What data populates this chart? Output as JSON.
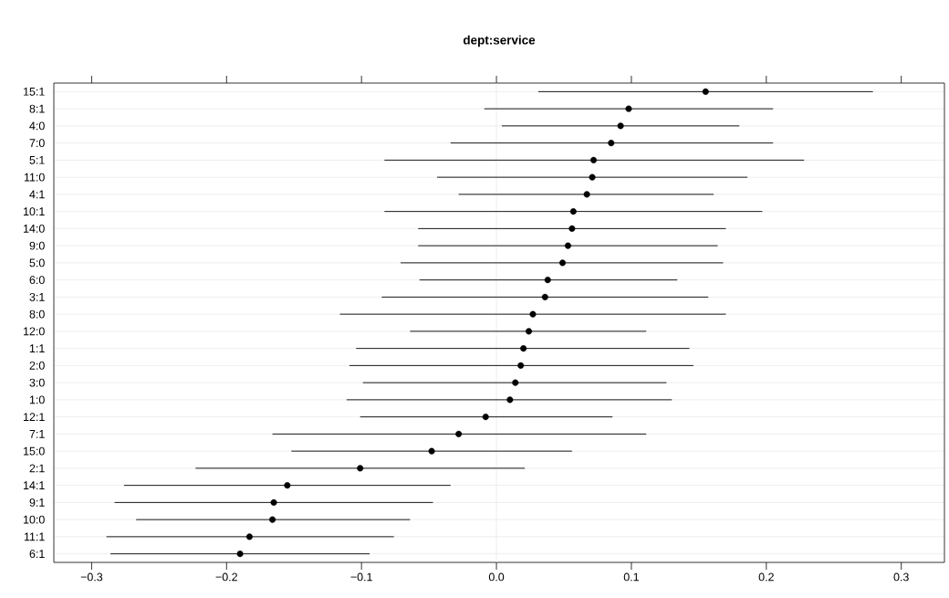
{
  "chart_data": {
    "type": "scatter",
    "title": "**dept:service**",
    "orientation": "horizontal",
    "categories": [
      "15:1",
      "8:1",
      "4:0",
      "7:0",
      "5:1",
      "11:0",
      "4:1",
      "10:1",
      "14:0",
      "9:0",
      "5:0",
      "6:0",
      "3:1",
      "8:0",
      "12:0",
      "1:1",
      "2:0",
      "3:0",
      "1:0",
      "12:1",
      "7:1",
      "15:0",
      "2:1",
      "14:1",
      "9:1",
      "10:0",
      "11:1",
      "6:1"
    ],
    "values": [
      0.155,
      0.098,
      0.092,
      0.085,
      0.072,
      0.071,
      0.067,
      0.057,
      0.056,
      0.053,
      0.049,
      0.038,
      0.036,
      0.027,
      0.024,
      0.02,
      0.018,
      0.014,
      0.01,
      -0.008,
      -0.028,
      -0.048,
      -0.101,
      -0.155,
      -0.165,
      -0.166,
      -0.183,
      -0.19
    ],
    "errors": [
      [
        0.031,
        0.279
      ],
      [
        -0.009,
        0.205
      ],
      [
        0.004,
        0.18
      ],
      [
        -0.034,
        0.205
      ],
      [
        -0.083,
        0.228
      ],
      [
        -0.044,
        0.186
      ],
      [
        -0.028,
        0.161
      ],
      [
        -0.083,
        0.197
      ],
      [
        -0.058,
        0.17
      ],
      [
        -0.058,
        0.164
      ],
      [
        -0.071,
        0.168
      ],
      [
        -0.057,
        0.134
      ],
      [
        -0.085,
        0.157
      ],
      [
        -0.116,
        0.17
      ],
      [
        -0.064,
        0.111
      ],
      [
        -0.104,
        0.143
      ],
      [
        -0.109,
        0.146
      ],
      [
        -0.099,
        0.126
      ],
      [
        -0.111,
        0.13
      ],
      [
        -0.101,
        0.086
      ],
      [
        -0.166,
        0.111
      ],
      [
        -0.152,
        0.056
      ],
      [
        -0.223,
        0.021
      ],
      [
        -0.276,
        -0.034
      ],
      [
        -0.283,
        -0.047
      ],
      [
        -0.267,
        -0.064
      ],
      [
        -0.289,
        -0.076
      ],
      [
        -0.286,
        -0.094
      ]
    ],
    "color": "#000000",
    "grid": "y",
    "xlim": [
      -0.328,
      0.332
    ],
    "xticks": [
      {
        "value": -0.3,
        "label": "−0.3"
      },
      {
        "value": -0.2,
        "label": "−0.2"
      },
      {
        "value": -0.1,
        "label": "−0.1"
      },
      {
        "value": 0,
        "label": "0.0"
      },
      {
        "value": 0.1,
        "label": "0.1"
      },
      {
        "value": 0.2,
        "label": "0.2"
      },
      {
        "value": 0.3,
        "label": "0.3"
      }
    ],
    "ref_lines": [
      {
        "axis": "x",
        "value": 0,
        "color": "#e6e6e6"
      }
    ]
  }
}
